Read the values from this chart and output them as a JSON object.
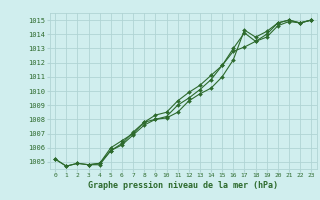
{
  "title": "Graphe pression niveau de la mer (hPa)",
  "background_color": "#d0eeee",
  "grid_color": "#b0d4d4",
  "line_color": "#2d6a2d",
  "marker_color": "#2d6a2d",
  "series1": {
    "x": [
      0,
      1,
      2,
      3,
      4,
      5,
      6,
      7,
      8,
      9,
      10,
      11,
      12,
      13,
      14,
      15,
      16,
      17,
      18,
      19,
      20,
      21,
      22,
      23
    ],
    "y": [
      1005.2,
      1004.7,
      1004.9,
      1004.8,
      1004.9,
      1006.0,
      1006.5,
      1007.0,
      1007.8,
      1008.0,
      1008.1,
      1008.5,
      1009.3,
      1009.8,
      1010.2,
      1011.0,
      1012.2,
      1014.3,
      1013.8,
      1014.2,
      1014.8,
      1015.0,
      1014.8,
      1015.0
    ]
  },
  "series2": {
    "x": [
      0,
      1,
      2,
      3,
      4,
      5,
      6,
      7,
      8,
      9,
      10,
      11,
      12,
      13,
      14,
      15,
      16,
      17,
      18,
      19,
      20,
      21,
      22,
      23
    ],
    "y": [
      1005.2,
      1004.7,
      1004.9,
      1004.8,
      1004.9,
      1005.8,
      1006.2,
      1006.9,
      1007.6,
      1008.0,
      1008.2,
      1009.0,
      1009.5,
      1010.1,
      1010.8,
      1011.8,
      1012.8,
      1013.1,
      1013.5,
      1014.0,
      1014.8,
      1015.0,
      1014.8,
      1015.0
    ]
  },
  "series3": {
    "x": [
      3,
      4,
      5,
      6,
      7,
      8,
      9,
      10,
      11,
      12,
      13,
      14,
      15,
      16,
      17,
      18,
      19,
      20,
      21,
      22,
      23
    ],
    "y": [
      1004.8,
      1004.8,
      1005.8,
      1006.3,
      1007.1,
      1007.8,
      1008.3,
      1008.5,
      1009.3,
      1009.9,
      1010.4,
      1011.1,
      1011.8,
      1013.0,
      1014.1,
      1013.5,
      1013.8,
      1014.6,
      1014.9,
      1014.8,
      1015.0
    ]
  },
  "xlim_min": -0.5,
  "xlim_max": 23.5,
  "ylim_min": 1004.5,
  "ylim_max": 1015.5,
  "yticks": [
    1005,
    1006,
    1007,
    1008,
    1009,
    1010,
    1011,
    1012,
    1013,
    1014,
    1015
  ],
  "xticks": [
    0,
    1,
    2,
    3,
    4,
    5,
    6,
    7,
    8,
    9,
    10,
    11,
    12,
    13,
    14,
    15,
    16,
    17,
    18,
    19,
    20,
    21,
    22,
    23
  ]
}
